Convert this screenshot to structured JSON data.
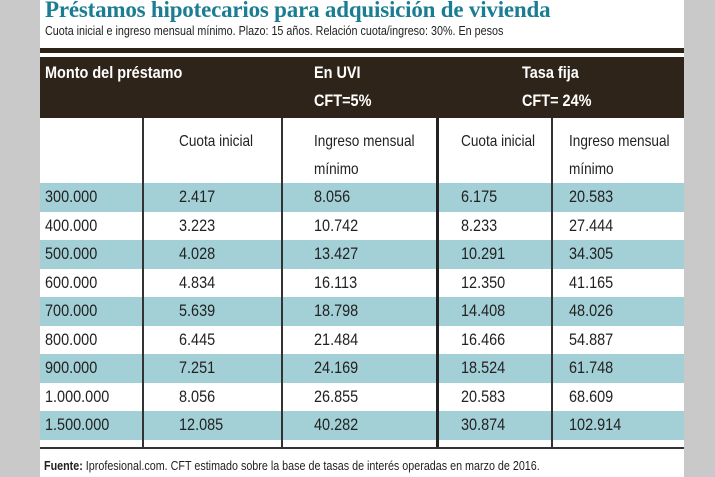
{
  "title": "Préstamos hipotecarios para adquisición de vivienda",
  "subtitle": "Cuota inicial e ingreso mensual mínimo. Plazo: 15 años. Relación cuota/ingreso: 30%. En pesos",
  "colors": {
    "title": "#1b7d92",
    "header_bg": "#2e2419",
    "row_alt": "#a3cfd6"
  },
  "chart_data": {
    "type": "table",
    "header": {
      "col0": "Monto del préstamo",
      "group1": "En UVI",
      "group1_rate": "CFT=5%",
      "group2": "Tasa fija",
      "group2_rate": "CFT= 24%"
    },
    "columns": [
      "Cuota inicial",
      "Ingreso mensual mínimo",
      "Cuota inicial",
      "Ingreso mensual mínimo"
    ],
    "columns_line2": [
      "",
      "mínimo",
      "",
      "mínimo"
    ],
    "columns_line1": [
      "Cuota inicial",
      "Ingreso mensual",
      "Cuota inicial",
      "Ingreso mensual"
    ],
    "rows": [
      [
        "300.000",
        "2.417",
        "8.056",
        "6.175",
        "20.583"
      ],
      [
        "400.000",
        "3.223",
        "10.742",
        "8.233",
        "27.444"
      ],
      [
        "500.000",
        "4.028",
        "13.427",
        "10.291",
        "34.305"
      ],
      [
        "600.000",
        "4.834",
        "16.113",
        "12.350",
        "41.165"
      ],
      [
        "700.000",
        "5.639",
        "18.798",
        "14.408",
        "48.026"
      ],
      [
        "800.000",
        "6.445",
        "21.484",
        "16.466",
        "54.887"
      ],
      [
        "900.000",
        "7.251",
        "24.169",
        "18.524",
        "61.748"
      ],
      [
        "1.000.000",
        "8.056",
        "26.855",
        "20.583",
        "68.609"
      ],
      [
        "1.500.000",
        "12.085",
        "40.282",
        "30.874",
        "102.914"
      ]
    ]
  },
  "footer": {
    "label": "Fuente:",
    "text": " Iprofesional.com. CFT estimado sobre la base de tasas de interés operadas en marzo de 2016."
  }
}
